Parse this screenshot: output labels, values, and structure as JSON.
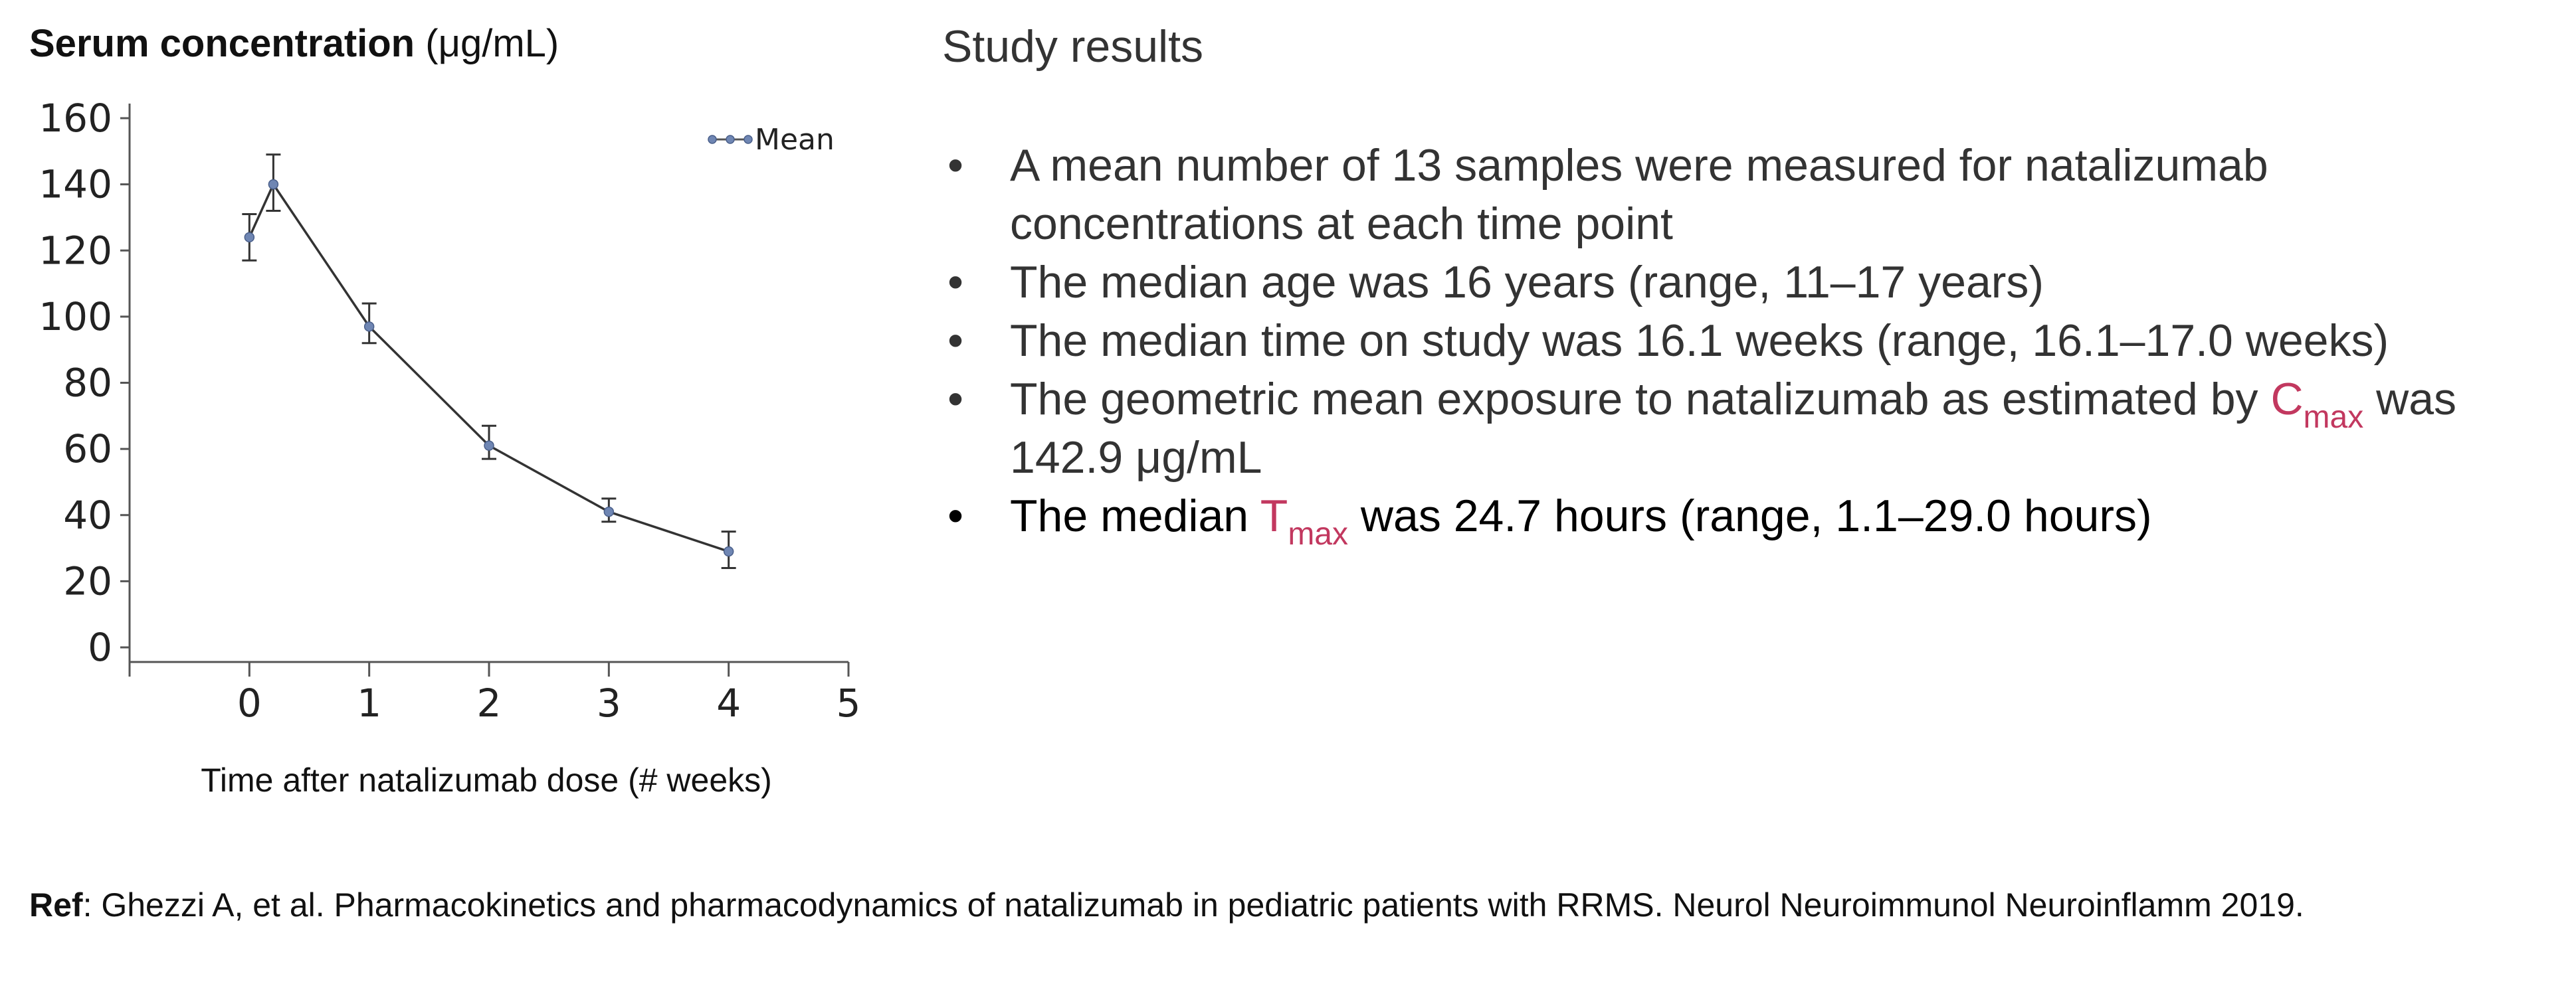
{
  "chart": {
    "title_bold": "Serum concentration",
    "title_unit": "(μg/mL)",
    "xlabel": "Time after natalizumab dose (# weeks)",
    "line_color": "#333333",
    "marker_color": "#6f86b3"
  },
  "chart_data": {
    "type": "line",
    "title": "Serum concentration (μg/mL)",
    "xlabel": "Time after natalizumab dose (# weeks)",
    "ylabel": "",
    "xlim": [
      -1,
      5
    ],
    "ylim": [
      0,
      160
    ],
    "xticks": [
      0,
      1,
      2,
      3,
      4,
      5
    ],
    "yticks": [
      0,
      20,
      40,
      60,
      80,
      100,
      120,
      140,
      160
    ],
    "legend_position": "top-right",
    "grid": false,
    "series": [
      {
        "name": "Mean",
        "x": [
          0,
          0.2,
          1,
          2,
          3,
          4
        ],
        "y": [
          124,
          140,
          97,
          61,
          41,
          29
        ],
        "err_low": [
          117,
          132,
          92,
          57,
          38,
          24
        ],
        "err_high": [
          131,
          149,
          104,
          67,
          45,
          35
        ]
      }
    ]
  },
  "results": {
    "title": "Study results",
    "bullets": [
      {
        "text": "A mean number of 13 samples were measured for natalizumab concentrations at each time point"
      },
      {
        "text": "The median age was 16 years (range, 11–17 years)"
      },
      {
        "text": "The median time on study was 16.1 weeks (range, 16.1–17.0 weeks)"
      },
      {
        "before": "The geometric mean exposure to natalizumab as estimated by ",
        "symbol": "C",
        "symbol_sub": "max",
        "after": " was 142.9 μg/mL"
      },
      {
        "before": "The median ",
        "symbol": "T",
        "symbol_sub": "max",
        "after": " was 24.7 hours (range, 1.1–29.0 hours)"
      }
    ],
    "bullet_glyph": "•",
    "accent_color": "#c2385f"
  },
  "reference": {
    "label": "Ref",
    "text": ": Ghezzi A, et al. Pharmacokinetics and pharmacodynamics of natalizumab in pediatric patients with RRMS. Neurol Neuroimmunol Neuroinflamm 2019."
  }
}
